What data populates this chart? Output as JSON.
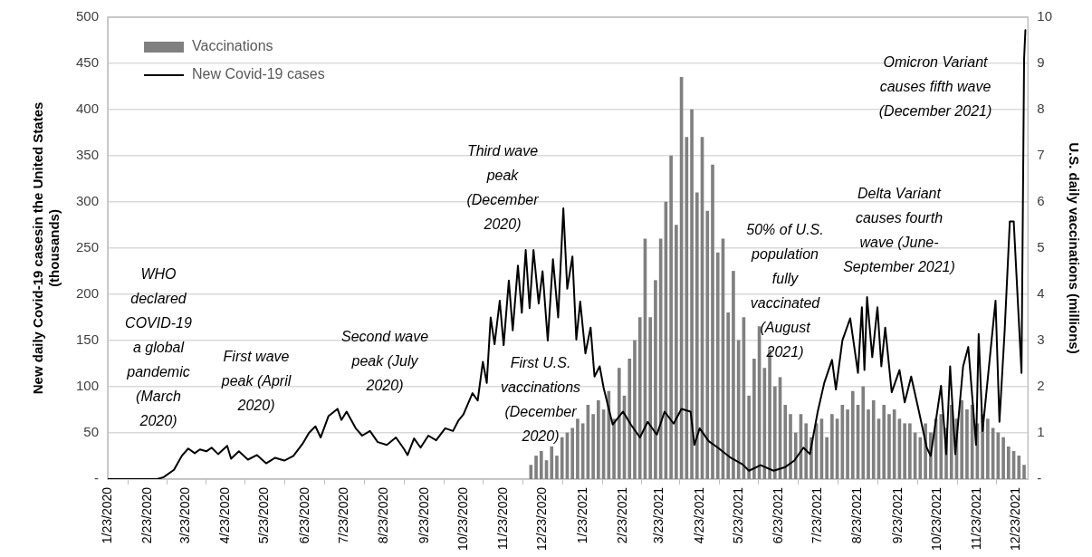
{
  "chart_data": {
    "type": "line",
    "ylabel": "New daily Covid-19 casesin the United States (thousands)",
    "y2label": "U.S. daily vaccinations (millions)",
    "xlim": [
      "2020-01-23",
      "2022-01-01"
    ],
    "xticks": [
      {
        "value": "2020-01-23",
        "label": "1/23/2020"
      },
      {
        "value": "2020-02-23",
        "label": "2/23/2020"
      },
      {
        "value": "2020-03-23",
        "label": "3/23/2020"
      },
      {
        "value": "2020-04-23",
        "label": "4/23/2020"
      },
      {
        "value": "2020-05-23",
        "label": "5/23/2020"
      },
      {
        "value": "2020-06-23",
        "label": "6/23/2020"
      },
      {
        "value": "2020-07-23",
        "label": "7/23/2020"
      },
      {
        "value": "2020-08-23",
        "label": "8/23/2020"
      },
      {
        "value": "2020-09-23",
        "label": "9/23/2020"
      },
      {
        "value": "2020-10-23",
        "label": "10/23/2020"
      },
      {
        "value": "2020-11-23",
        "label": "11/23/2020"
      },
      {
        "value": "2020-12-23",
        "label": "12/23/2020"
      },
      {
        "value": "2021-01-23",
        "label": "1/23/2021"
      },
      {
        "value": "2021-02-23",
        "label": "2/23/2021"
      },
      {
        "value": "2021-03-23",
        "label": "3/23/2021"
      },
      {
        "value": "2021-04-23",
        "label": "4/23/2021"
      },
      {
        "value": "2021-05-23",
        "label": "5/23/2021"
      },
      {
        "value": "2021-06-23",
        "label": "6/23/2021"
      },
      {
        "value": "2021-07-23",
        "label": "7/23/2021"
      },
      {
        "value": "2021-08-23",
        "label": "8/23/2021"
      },
      {
        "value": "2021-09-23",
        "label": "9/23/2021"
      },
      {
        "value": "2021-10-23",
        "label": "10/23/2021"
      },
      {
        "value": "2021-11-23",
        "label": "11/23/2021"
      },
      {
        "value": "2021-12-23",
        "label": "12/23/2021"
      }
    ],
    "ylim": [
      0,
      500
    ],
    "yticks": [
      {
        "value": 0,
        "label": "-"
      },
      50,
      100,
      150,
      200,
      250,
      300,
      350,
      400,
      450,
      500
    ],
    "y2lim": [
      0,
      10
    ],
    "y2ticks": [
      {
        "value": 0,
        "label": "-"
      },
      1,
      2,
      3,
      4,
      5,
      6,
      7,
      8,
      9,
      10
    ],
    "grid": "y",
    "legend": "top left",
    "marker": "none",
    "series": [
      {
        "name": "Vaccinations",
        "type": "bar",
        "axis": "y2",
        "color": "#808080",
        "x": [
          "2020-12-14",
          "2020-12-18",
          "2020-12-22",
          "2020-12-26",
          "2020-12-30",
          "2021-01-03",
          "2021-01-07",
          "2021-01-11",
          "2021-01-15",
          "2021-01-19",
          "2021-01-23",
          "2021-01-27",
          "2021-01-31",
          "2021-02-04",
          "2021-02-08",
          "2021-02-12",
          "2021-02-16",
          "2021-02-20",
          "2021-02-24",
          "2021-02-28",
          "2021-03-04",
          "2021-03-08",
          "2021-03-12",
          "2021-03-16",
          "2021-03-20",
          "2021-03-24",
          "2021-03-28",
          "2021-04-01",
          "2021-04-05",
          "2021-04-09",
          "2021-04-13",
          "2021-04-17",
          "2021-04-21",
          "2021-04-25",
          "2021-04-29",
          "2021-05-03",
          "2021-05-07",
          "2021-05-11",
          "2021-05-15",
          "2021-05-19",
          "2021-05-23",
          "2021-05-27",
          "2021-05-31",
          "2021-06-04",
          "2021-06-08",
          "2021-06-12",
          "2021-06-16",
          "2021-06-20",
          "2021-06-24",
          "2021-06-28",
          "2021-07-02",
          "2021-07-06",
          "2021-07-10",
          "2021-07-14",
          "2021-07-18",
          "2021-07-22",
          "2021-07-26",
          "2021-07-30",
          "2021-08-03",
          "2021-08-07",
          "2021-08-11",
          "2021-08-15",
          "2021-08-19",
          "2021-08-23",
          "2021-08-27",
          "2021-08-31",
          "2021-09-04",
          "2021-09-08",
          "2021-09-12",
          "2021-09-16",
          "2021-09-20",
          "2021-09-24",
          "2021-09-28",
          "2021-10-02",
          "2021-10-06",
          "2021-10-10",
          "2021-10-14",
          "2021-10-18",
          "2021-10-22",
          "2021-10-26",
          "2021-10-30",
          "2021-11-03",
          "2021-11-07",
          "2021-11-11",
          "2021-11-15",
          "2021-11-19",
          "2021-11-23",
          "2021-11-27",
          "2021-12-01",
          "2021-12-05",
          "2021-12-09",
          "2021-12-13",
          "2021-12-17",
          "2021-12-21",
          "2021-12-25",
          "2021-12-29"
        ],
        "values": [
          0.3,
          0.5,
          0.6,
          0.4,
          0.7,
          0.5,
          0.9,
          1.0,
          1.1,
          1.3,
          1.2,
          1.6,
          1.4,
          1.7,
          1.5,
          1.9,
          1.3,
          2.4,
          1.8,
          2.6,
          3.0,
          3.5,
          5.2,
          3.5,
          4.3,
          5.2,
          6.0,
          7.0,
          5.5,
          8.7,
          7.4,
          8.0,
          6.2,
          7.4,
          5.8,
          6.8,
          4.9,
          5.2,
          3.6,
          4.5,
          3.0,
          3.5,
          1.8,
          2.6,
          3.3,
          2.4,
          2.8,
          2.0,
          2.2,
          1.6,
          1.4,
          1.0,
          1.4,
          1.2,
          0.9,
          1.2,
          1.3,
          0.9,
          1.4,
          1.3,
          1.6,
          1.5,
          1.9,
          1.6,
          2.0,
          1.5,
          1.7,
          1.3,
          1.6,
          1.4,
          1.5,
          1.3,
          1.2,
          1.2,
          1.0,
          0.9,
          1.2,
          1.0,
          1.3,
          1.4,
          1.1,
          1.6,
          1.3,
          1.7,
          1.5,
          1.6,
          1.2,
          1.4,
          1.3,
          1.1,
          1.0,
          0.9,
          0.7,
          0.6,
          0.5,
          0.3
        ]
      },
      {
        "name": "New Covid-19 cases",
        "color": "#000000",
        "x": [
          "2020-01-23",
          "2020-03-01",
          "2020-03-06",
          "2020-03-14",
          "2020-03-20",
          "2020-03-25",
          "2020-03-30",
          "2020-04-03",
          "2020-04-08",
          "2020-04-12",
          "2020-04-17",
          "2020-04-24",
          "2020-04-27",
          "2020-05-03",
          "2020-05-10",
          "2020-05-17",
          "2020-05-24",
          "2020-05-31",
          "2020-06-07",
          "2020-06-14",
          "2020-06-21",
          "2020-06-26",
          "2020-07-01",
          "2020-07-05",
          "2020-07-11",
          "2020-07-18",
          "2020-07-21",
          "2020-07-25",
          "2020-08-01",
          "2020-08-06",
          "2020-08-12",
          "2020-08-18",
          "2020-08-25",
          "2020-09-01",
          "2020-09-07",
          "2020-09-10",
          "2020-09-15",
          "2020-09-20",
          "2020-09-26",
          "2020-10-02",
          "2020-10-09",
          "2020-10-15",
          "2020-10-19",
          "2020-10-23",
          "2020-10-30",
          "2020-11-03",
          "2020-11-07",
          "2020-11-10",
          "2020-11-13",
          "2020-11-16",
          "2020-11-20",
          "2020-11-23",
          "2020-11-27",
          "2020-11-30",
          "2020-12-04",
          "2020-12-07",
          "2020-12-10",
          "2020-12-13",
          "2020-12-16",
          "2020-12-20",
          "2020-12-23",
          "2020-12-27",
          "2020-12-31",
          "2021-01-04",
          "2021-01-08",
          "2021-01-11",
          "2021-01-15",
          "2021-01-18",
          "2021-01-21",
          "2021-01-25",
          "2021-01-29",
          "2021-02-01",
          "2021-02-05",
          "2021-02-08",
          "2021-02-15",
          "2021-02-23",
          "2021-03-01",
          "2021-03-08",
          "2021-03-14",
          "2021-03-21",
          "2021-03-27",
          "2021-04-03",
          "2021-04-09",
          "2021-04-16",
          "2021-04-19",
          "2021-04-23",
          "2021-04-30",
          "2021-05-07",
          "2021-05-17",
          "2021-05-26",
          "2021-05-31",
          "2021-06-09",
          "2021-06-19",
          "2021-06-28",
          "2021-07-05",
          "2021-07-12",
          "2021-07-17",
          "2021-07-23",
          "2021-07-28",
          "2021-08-03",
          "2021-08-06",
          "2021-08-11",
          "2021-08-17",
          "2021-08-23",
          "2021-08-26",
          "2021-08-28",
          "2021-08-30",
          "2021-09-03",
          "2021-09-07",
          "2021-09-10",
          "2021-09-13",
          "2021-09-18",
          "2021-09-24",
          "2021-09-28",
          "2021-10-03",
          "2021-10-09",
          "2021-10-15",
          "2021-10-18",
          "2021-10-26",
          "2021-10-30",
          "2021-11-02",
          "2021-11-06",
          "2021-11-12",
          "2021-11-16",
          "2021-11-22",
          "2021-11-24",
          "2021-11-27",
          "2021-12-04",
          "2021-12-07",
          "2021-12-10",
          "2021-12-14",
          "2021-12-18",
          "2021-12-21",
          "2021-12-27",
          "2021-12-29",
          "2021-12-30"
        ],
        "values": [
          0,
          0,
          2,
          10,
          25,
          33,
          28,
          32,
          30,
          34,
          27,
          36,
          22,
          30,
          21,
          26,
          17,
          23,
          20,
          25,
          38,
          50,
          57,
          45,
          68,
          76,
          64,
          73,
          55,
          47,
          52,
          40,
          37,
          45,
          33,
          26,
          44,
          34,
          47,
          42,
          55,
          52,
          63,
          70,
          93,
          85,
          127,
          104,
          175,
          146,
          193,
          145,
          215,
          161,
          231,
          180,
          248,
          185,
          248,
          190,
          225,
          150,
          238,
          175,
          293,
          206,
          241,
          151,
          192,
          136,
          164,
          111,
          122,
          99,
          59,
          73,
          59,
          45,
          62,
          48,
          73,
          60,
          76,
          73,
          37,
          55,
          41,
          34,
          23,
          16,
          9,
          15,
          9,
          13,
          20,
          34,
          27,
          73,
          104,
          129,
          97,
          150,
          174,
          115,
          186,
          118,
          197,
          132,
          186,
          122,
          164,
          94,
          118,
          83,
          111,
          73,
          34,
          25,
          101,
          27,
          122,
          27,
          122,
          143,
          37,
          157,
          52,
          151,
          193,
          62,
          160,
          279,
          279,
          115,
          455,
          486
        ]
      }
    ],
    "annotations": [
      "WHO declared COVID-19 a global pandemic (March 2020)",
      "First wave peak (April 2020)",
      "Second wave peak (July 2020)",
      "Third wave peak (December 2020)",
      "First U.S. vaccinations (December 2020)",
      "50% of U.S. population fully vaccinated (August 2021)",
      "Delta Variant causes fourth wave (June-September 2021)",
      "Omicron Variant causes fifth wave (December 2021)"
    ]
  }
}
